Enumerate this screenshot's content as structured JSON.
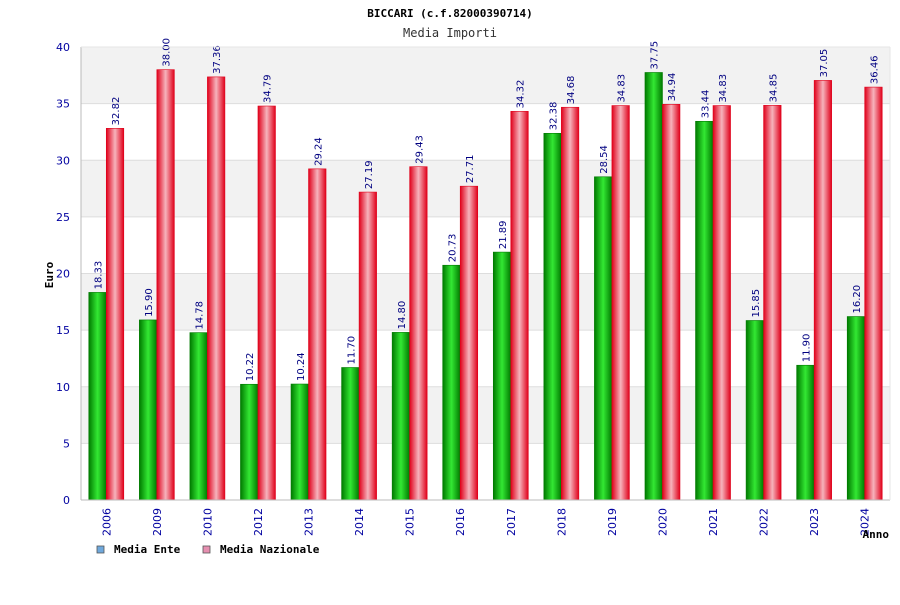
{
  "header": {
    "title": "BICCARI (c.f.82000390714)",
    "subtitle": "Media Importi"
  },
  "legend": {
    "items": [
      {
        "label": "Media Ente",
        "swatch": "#6FA8DC"
      },
      {
        "label": "Media Nazionale",
        "swatch": "#E68FB0"
      }
    ]
  },
  "colors": {
    "ente_dark": "#007A00",
    "ente_light": "#33E833",
    "nazionale_dark": "#E0001A",
    "nazionale_light": "#F6B3BC",
    "plot_band_gray": "#F2F2F2",
    "plot_band_white": "#FFFFFF",
    "tick_label": "#0000A0",
    "value_label": "#000080"
  },
  "chart_data": {
    "type": "bar",
    "title": "BICCARI (c.f.82000390714)",
    "subtitle": "Media Importi",
    "xlabel": "Anno",
    "ylabel": "Euro",
    "ylim": [
      0,
      40
    ],
    "yticks": [
      0,
      5,
      10,
      15,
      20,
      25,
      30,
      35,
      40
    ],
    "grid": true,
    "legend_position": "bottom-left",
    "categories": [
      "2006",
      "2009",
      "2010",
      "2012",
      "2013",
      "2014",
      "2015",
      "2016",
      "2017",
      "2018",
      "2019",
      "2020",
      "2021",
      "2022",
      "2023",
      "2024"
    ],
    "series": [
      {
        "name": "Media Ente",
        "values": [
          18.33,
          15.9,
          14.78,
          10.22,
          10.24,
          11.7,
          14.8,
          20.73,
          21.89,
          32.38,
          28.54,
          37.75,
          33.44,
          15.85,
          11.9,
          16.2
        ],
        "labels": [
          "18.33",
          "15.90",
          "14.78",
          "10.22",
          "10.24",
          "11.70",
          "14.80",
          "20.73",
          "21.89",
          "32.38",
          "28.54",
          "37.75",
          "33.44",
          "15.85",
          "11.90",
          "16.20"
        ]
      },
      {
        "name": "Media Nazionale",
        "values": [
          32.82,
          38.0,
          37.36,
          34.79,
          29.24,
          27.19,
          29.43,
          27.71,
          34.32,
          34.68,
          34.83,
          34.94,
          34.83,
          34.85,
          37.05,
          36.46
        ],
        "labels": [
          "32.82",
          "38.00",
          "37.36",
          "34.79",
          "29.24",
          "27.19",
          "29.43",
          "27.71",
          "34.32",
          "34.68",
          "34.83",
          "34.94",
          "34.83",
          "34.85",
          "37.05",
          "36.46"
        ]
      }
    ]
  }
}
